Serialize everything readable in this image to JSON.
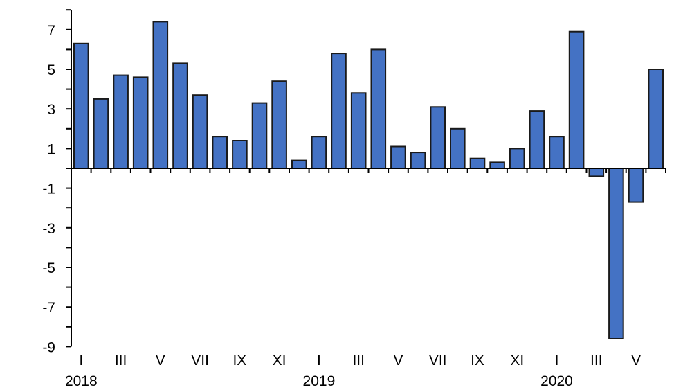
{
  "chart_data": {
    "type": "bar",
    "title": "",
    "xlabel": "",
    "ylabel": "",
    "ylim": [
      -9,
      8
    ],
    "y_ticks": [
      "7",
      "5",
      "3",
      "1",
      "-1",
      "-3",
      "-5",
      "-7",
      "-9"
    ],
    "x_tick_labels": [
      "I",
      "III",
      "V",
      "VII",
      "IX",
      "XI",
      "I",
      "III",
      "V",
      "VII",
      "IX",
      "XI",
      "I",
      "III",
      "V"
    ],
    "year_labels": [
      "2018",
      "2019",
      "2020"
    ],
    "grid": false,
    "legend": "none",
    "bar_color": "#4472C4",
    "categories": [
      "2018-I",
      "2018-II",
      "2018-III",
      "2018-IV",
      "2018-V",
      "2018-VI",
      "2018-VII",
      "2018-VIII",
      "2018-IX",
      "2018-X",
      "2018-XI",
      "2018-XII",
      "2019-I",
      "2019-II",
      "2019-III",
      "2019-IV",
      "2019-V",
      "2019-VI",
      "2019-VII",
      "2019-VIII",
      "2019-IX",
      "2019-X",
      "2019-XI",
      "2019-XII",
      "2020-I",
      "2020-II",
      "2020-III",
      "2020-IV",
      "2020-V",
      "2020-VI"
    ],
    "values": [
      6.3,
      3.5,
      4.7,
      4.6,
      7.4,
      5.3,
      3.7,
      1.6,
      1.4,
      3.3,
      4.4,
      0.4,
      1.6,
      5.8,
      3.8,
      6.0,
      1.1,
      0.8,
      3.1,
      2.0,
      0.5,
      0.3,
      1.0,
      2.9,
      1.6,
      6.9,
      -0.4,
      -8.6,
      -1.7,
      5.0
    ]
  }
}
